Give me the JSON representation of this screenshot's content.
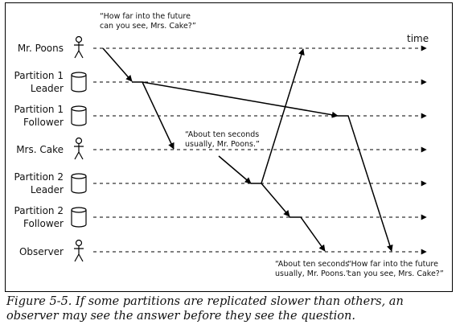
{
  "participants": [
    {
      "label": [
        "Mr. Poons"
      ],
      "icon": "person-icon"
    },
    {
      "label": [
        "Partition 1",
        "Leader"
      ],
      "icon": "database-icon"
    },
    {
      "label": [
        "Partition 1",
        "Follower"
      ],
      "icon": "database-icon"
    },
    {
      "label": [
        "Mrs. Cake"
      ],
      "icon": "person-icon"
    },
    {
      "label": [
        "Partition 2",
        "Leader"
      ],
      "icon": "database-icon"
    },
    {
      "label": [
        "Partition 2",
        "Follower"
      ],
      "icon": "database-icon"
    },
    {
      "label": [
        "Observer"
      ],
      "icon": "person-icon"
    }
  ],
  "time_label": "time",
  "annotations": {
    "question_from_poons": [
      "“How far into the future",
      "can you see, Mrs. Cake?”"
    ],
    "answer_from_cake": [
      "“About ten seconds",
      "usually, Mr. Poons.”"
    ],
    "observer_sees_answer": [
      "“About ten seconds",
      "usually, Mr. Poons.”"
    ],
    "observer_sees_question": [
      "“How far into the future",
      "can you see, Mrs. Cake?”"
    ]
  },
  "caption": "Figure 5-5. If some partitions are replicated slower than others, an observer may see the answer before they see the question."
}
